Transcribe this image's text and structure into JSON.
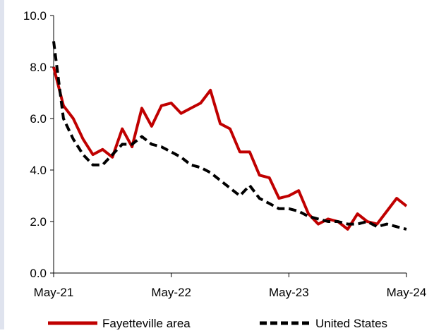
{
  "chart_data": {
    "type": "line",
    "title": "",
    "xlabel": "",
    "ylabel": "",
    "ylim": [
      0,
      10
    ],
    "yticks": [
      "0.0",
      "2.0",
      "4.0",
      "6.0",
      "8.0",
      "10.0"
    ],
    "xticks": [
      "May-21",
      "May-22",
      "May-23",
      "May-24"
    ],
    "x_start": "May-21",
    "x_end": "May-24",
    "grid": false,
    "legend": "bottom",
    "series": [
      {
        "name": "Fayetteville area",
        "color": "#c00000",
        "style": "solid",
        "values": [
          8.0,
          6.5,
          6.0,
          5.2,
          4.6,
          4.8,
          4.5,
          5.6,
          4.9,
          6.4,
          5.7,
          6.5,
          6.6,
          6.2,
          6.4,
          6.6,
          7.1,
          5.8,
          5.6,
          4.7,
          4.7,
          3.8,
          3.7,
          2.9,
          3.0,
          3.2,
          2.3,
          1.9,
          2.1,
          2.0,
          1.7,
          2.3,
          2.0,
          1.9,
          2.4,
          2.9,
          2.6
        ]
      },
      {
        "name": "United States",
        "color": "#000000",
        "style": "dashed",
        "values": [
          9.0,
          6.0,
          5.2,
          4.6,
          4.2,
          4.2,
          4.6,
          5.0,
          5.0,
          5.3,
          5.0,
          4.9,
          4.7,
          4.5,
          4.2,
          4.1,
          3.9,
          3.6,
          3.3,
          3.0,
          3.4,
          2.9,
          2.7,
          2.5,
          2.5,
          2.4,
          2.2,
          2.1,
          2.0,
          2.0,
          1.9,
          1.9,
          2.0,
          1.8,
          1.9,
          1.8,
          1.7
        ]
      }
    ]
  }
}
